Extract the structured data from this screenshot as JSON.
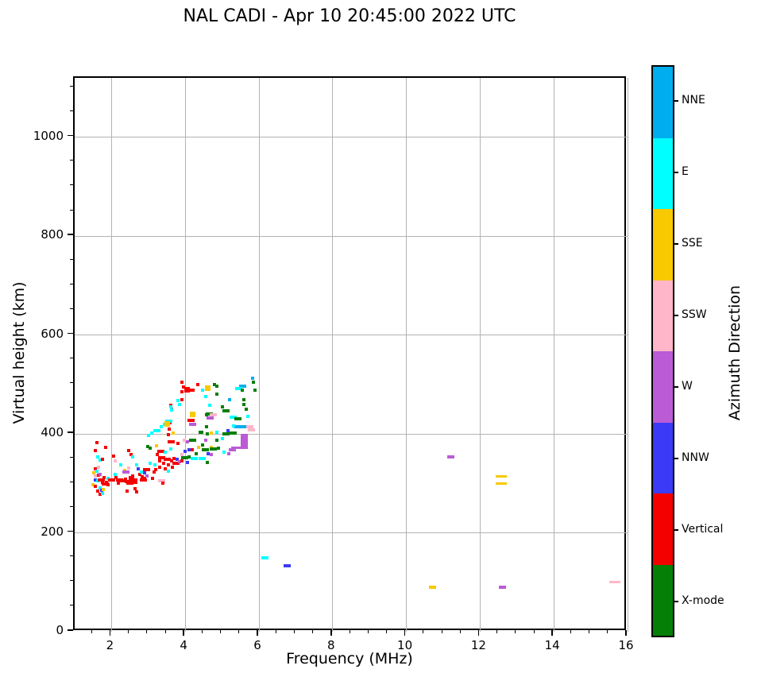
{
  "title": "NAL CADI - Apr 10 20:45:00 2022 UTC",
  "chart_data": {
    "type": "scatter",
    "title": "NAL CADI - Apr 10 20:45:00 2022 UTC",
    "xlabel": "Frequency (MHz)",
    "ylabel": "Virtual height (km)",
    "xlim": [
      1,
      16
    ],
    "ylim": [
      0,
      1120
    ],
    "x_major_ticks": [
      2,
      4,
      6,
      8,
      10,
      12,
      14,
      16
    ],
    "y_major_ticks": [
      0,
      200,
      400,
      600,
      800,
      1000
    ],
    "x_minor_step": 0.5,
    "y_minor_step": 50,
    "grid": true,
    "grid_color": "#b3b3b3",
    "background_color": "#ffffff",
    "colorbar": {
      "label": "Azimuth Direction",
      "position": "right",
      "categories_top_to_bottom": [
        {
          "label": "NNE",
          "color": "#00ADEF"
        },
        {
          "label": "E",
          "color": "#00FFFF"
        },
        {
          "label": "SSE",
          "color": "#F8C800"
        },
        {
          "label": "SSW",
          "color": "#FFB6C9"
        },
        {
          "label": "W",
          "color": "#BB5BD6"
        },
        {
          "label": "NNW",
          "color": "#3B3BF7"
        },
        {
          "label": "Vertical",
          "color": "#F50000"
        },
        {
          "label": "X-mode",
          "color": "#067F06"
        }
      ]
    },
    "marker_size_classes": {
      "1": {
        "w": 4,
        "h": 4
      },
      "2": {
        "w": 9,
        "h": 4
      },
      "3": {
        "w": 7,
        "h": 7
      },
      "4": {
        "w": 9,
        "h": 19
      },
      "5": {
        "w": 14,
        "h": 3
      }
    },
    "points_format": [
      "freq_mhz",
      "virtual_height_km",
      "azimuth_category",
      "size_class"
    ],
    "points": [
      [
        1.61,
        382,
        "Vertical",
        1
      ],
      [
        1.83,
        373,
        "Vertical",
        1
      ],
      [
        1.57,
        366,
        "Vertical",
        1
      ],
      [
        1.55,
        330,
        "Vertical",
        1
      ],
      [
        1.63,
        353,
        "E",
        1
      ],
      [
        1.7,
        347,
        "E",
        1
      ],
      [
        1.76,
        349,
        "Vertical",
        1
      ],
      [
        1.65,
        333,
        "SSW",
        1
      ],
      [
        1.61,
        325,
        "E",
        1
      ],
      [
        1.52,
        321,
        "SSE",
        1
      ],
      [
        1.57,
        315,
        "SSW",
        1
      ],
      [
        1.65,
        316,
        "Vertical",
        1
      ],
      [
        1.7,
        318,
        "W",
        1
      ],
      [
        1.55,
        307,
        "NNW",
        1
      ],
      [
        1.63,
        305,
        "E",
        1
      ],
      [
        1.72,
        307,
        "Vertical",
        2
      ],
      [
        1.76,
        302,
        "Vertical",
        1
      ],
      [
        1.5,
        297,
        "SSE",
        1
      ],
      [
        1.57,
        294,
        "Vertical",
        1
      ],
      [
        1.68,
        291,
        "E",
        1
      ],
      [
        1.74,
        286,
        "NNW",
        1
      ],
      [
        1.63,
        284,
        "Vertical",
        1
      ],
      [
        1.68,
        278,
        "Vertical",
        1
      ],
      [
        1.76,
        280,
        "E",
        1
      ],
      [
        1.78,
        288,
        "SSE",
        1
      ],
      [
        1.8,
        312,
        "Vertical",
        1
      ],
      [
        1.83,
        299,
        "Vertical",
        2
      ],
      [
        1.87,
        302,
        "Vertical",
        1
      ],
      [
        1.91,
        297,
        "Vertical",
        1
      ],
      [
        1.9,
        310,
        "E",
        1
      ],
      [
        2.0,
        307,
        "Vertical",
        2
      ],
      [
        2.05,
        355,
        "Vertical",
        1
      ],
      [
        2.1,
        345,
        "SSW",
        1
      ],
      [
        2.09,
        318,
        "E",
        1
      ],
      [
        2.13,
        311,
        "Vertical",
        1
      ],
      [
        2.19,
        300,
        "Vertical",
        1
      ],
      [
        2.22,
        307,
        "Vertical",
        2
      ],
      [
        2.25,
        338,
        "E",
        1
      ],
      [
        2.3,
        305,
        "Vertical",
        2
      ],
      [
        2.35,
        327,
        "SSE",
        1
      ],
      [
        2.37,
        308,
        "Vertical",
        1
      ],
      [
        2.4,
        323,
        "W",
        2
      ],
      [
        2.43,
        284,
        "Vertical",
        1
      ],
      [
        2.45,
        303,
        "Vertical",
        2
      ],
      [
        2.47,
        331,
        "SSW",
        1
      ],
      [
        2.47,
        366,
        "Vertical",
        1
      ],
      [
        2.5,
        300,
        "Vertical",
        2
      ],
      [
        2.52,
        358,
        "Vertical",
        1
      ],
      [
        2.55,
        310,
        "Vertical",
        3
      ],
      [
        2.58,
        353,
        "E",
        1
      ],
      [
        2.58,
        315,
        "Vertical",
        1
      ],
      [
        2.63,
        305,
        "Vertical",
        3
      ],
      [
        2.63,
        289,
        "Vertical",
        1
      ],
      [
        2.65,
        305,
        "Vertical",
        1
      ],
      [
        2.69,
        337,
        "E",
        1
      ],
      [
        2.69,
        283,
        "Vertical",
        1
      ],
      [
        2.73,
        329,
        "NNW",
        1
      ],
      [
        2.76,
        318,
        "Vertical",
        1
      ],
      [
        2.8,
        323,
        "E",
        1
      ],
      [
        2.84,
        313,
        "Vertical",
        1
      ],
      [
        2.86,
        307,
        "Vertical",
        2
      ],
      [
        2.9,
        310,
        "Vertical",
        1
      ],
      [
        2.99,
        374,
        "X-mode",
        1
      ],
      [
        2.9,
        321,
        "NNW",
        1
      ],
      [
        2.95,
        328,
        "Vertical",
        2
      ],
      [
        2.97,
        315,
        "W",
        1
      ],
      [
        3.05,
        371,
        "X-mode",
        1
      ],
      [
        3.05,
        340,
        "E",
        1
      ],
      [
        3.12,
        310,
        "Vertical",
        1
      ],
      [
        3.16,
        323,
        "Vertical",
        1
      ],
      [
        3.18,
        337,
        "E",
        1
      ],
      [
        3.2,
        328,
        "Vertical",
        1
      ],
      [
        3.23,
        376,
        "SSE",
        1
      ],
      [
        3.25,
        358,
        "Vertical",
        1
      ],
      [
        3.3,
        345,
        "Vertical",
        1
      ],
      [
        3.3,
        333,
        "Vertical",
        1
      ],
      [
        3.34,
        365,
        "Vertical",
        2
      ],
      [
        3.35,
        352,
        "Vertical",
        2
      ],
      [
        3.35,
        305,
        "SSW",
        2
      ],
      [
        3.4,
        300,
        "Vertical",
        1
      ],
      [
        3.42,
        340,
        "Vertical",
        1
      ],
      [
        3.45,
        363,
        "E",
        1
      ],
      [
        3.45,
        330,
        "Vertical",
        1
      ],
      [
        3.5,
        348,
        "Vertical",
        2
      ],
      [
        3.55,
        338,
        "Vertical",
        1
      ],
      [
        3.55,
        325,
        "E",
        1
      ],
      [
        3.6,
        370,
        "E",
        1
      ],
      [
        3.62,
        384,
        "Vertical",
        2
      ],
      [
        3.62,
        345,
        "Vertical",
        1
      ],
      [
        3.65,
        332,
        "Vertical",
        1
      ],
      [
        3.68,
        401,
        "SSE",
        1
      ],
      [
        3.7,
        350,
        "Vertical",
        1
      ],
      [
        3.75,
        340,
        "Vertical",
        2
      ],
      [
        3.77,
        349,
        "NNW",
        1
      ],
      [
        3.81,
        381,
        "Vertical",
        1
      ],
      [
        3.84,
        344,
        "W",
        1
      ],
      [
        3.92,
        358,
        "SSW",
        1
      ],
      [
        3.9,
        345,
        "Vertical",
        1
      ],
      [
        3.98,
        387,
        "SSW",
        1
      ],
      [
        3.98,
        352,
        "X-mode",
        2
      ],
      [
        4.0,
        365,
        "NNW",
        1
      ],
      [
        4.05,
        384,
        "W",
        1
      ],
      [
        4.05,
        342,
        "NNW",
        1
      ],
      [
        4.1,
        368,
        "NNW",
        1
      ],
      [
        4.1,
        354,
        "X-mode",
        1
      ],
      [
        4.15,
        428,
        "Vertical",
        2
      ],
      [
        4.2,
        387,
        "X-mode",
        2
      ],
      [
        4.2,
        368,
        "Vertical",
        1
      ],
      [
        4.2,
        420,
        "W",
        2
      ],
      [
        4.25,
        350,
        "E",
        2
      ],
      [
        4.3,
        360,
        "X-mode",
        1
      ],
      [
        4.37,
        373,
        "SSE",
        1
      ],
      [
        4.4,
        403,
        "X-mode",
        1
      ],
      [
        4.45,
        350,
        "E",
        2
      ],
      [
        4.46,
        378,
        "X-mode",
        1
      ],
      [
        4.56,
        387,
        "W",
        1
      ],
      [
        4.7,
        401,
        "SSE",
        1
      ],
      [
        3.92,
        505,
        "Vertical",
        1
      ],
      [
        3.95,
        495,
        "Vertical",
        1
      ],
      [
        3.92,
        485,
        "Vertical",
        1
      ],
      [
        4.05,
        490,
        "Vertical",
        3
      ],
      [
        4.15,
        488,
        "Vertical",
        2
      ],
      [
        3.9,
        470,
        "Vertical",
        1
      ],
      [
        4.35,
        500,
        "Vertical",
        1
      ],
      [
        3.6,
        458,
        "Vertical",
        1
      ],
      [
        3.62,
        450,
        "Vertical",
        1
      ],
      [
        3.58,
        423,
        "Vertical",
        1
      ],
      [
        3.56,
        410,
        "Vertical",
        1
      ],
      [
        3.55,
        399,
        "Vertical",
        1
      ],
      [
        3.8,
        468,
        "E",
        1
      ],
      [
        3.84,
        460,
        "E",
        1
      ],
      [
        3.6,
        455,
        "E",
        1
      ],
      [
        3.63,
        448,
        "E",
        1
      ],
      [
        3.55,
        426,
        "E",
        2
      ],
      [
        3.44,
        420,
        "E",
        1
      ],
      [
        3.34,
        415,
        "E",
        1
      ],
      [
        3.23,
        407,
        "E",
        2
      ],
      [
        3.1,
        402,
        "E",
        1
      ],
      [
        3.0,
        397,
        "E",
        1
      ],
      [
        4.46,
        489,
        "E",
        1
      ],
      [
        3.52,
        420,
        "SSE",
        3
      ],
      [
        4.2,
        440,
        "SSE",
        3
      ],
      [
        4.6,
        492,
        "SSE",
        3
      ],
      [
        4.8,
        500,
        "X-mode",
        1
      ],
      [
        4.85,
        497,
        "X-mode",
        1
      ],
      [
        4.85,
        480,
        "X-mode",
        1
      ],
      [
        4.57,
        438,
        "X-mode",
        1
      ],
      [
        4.65,
        440,
        "X-mode",
        2
      ],
      [
        4.57,
        414,
        "X-mode",
        1
      ],
      [
        4.6,
        400,
        "X-mode",
        1
      ],
      [
        4.45,
        403,
        "X-mode",
        1
      ],
      [
        4.55,
        476,
        "E",
        1
      ],
      [
        4.66,
        458,
        "E",
        1
      ],
      [
        4.75,
        438,
        "SSW",
        2
      ],
      [
        4.68,
        432,
        "W",
        2
      ],
      [
        5.1,
        447,
        "X-mode",
        2
      ],
      [
        5.3,
        434,
        "E",
        2
      ],
      [
        5.42,
        430,
        "X-mode",
        2
      ],
      [
        5.55,
        497,
        "NNE",
        2
      ],
      [
        5.45,
        492,
        "E",
        2
      ],
      [
        5.55,
        488,
        "X-mode",
        1
      ],
      [
        5.6,
        470,
        "X-mode",
        1
      ],
      [
        5.6,
        460,
        "X-mode",
        1
      ],
      [
        5.75,
        415,
        "SSW",
        2
      ],
      [
        5.4,
        415,
        "NNE",
        2
      ],
      [
        5.55,
        414,
        "NNE",
        2
      ],
      [
        5.3,
        416,
        "E",
        1
      ],
      [
        5.15,
        407,
        "NNW",
        1
      ],
      [
        5.1,
        400,
        "X-mode",
        2
      ],
      [
        5.3,
        402,
        "X-mode",
        2
      ],
      [
        4.85,
        403,
        "E",
        1
      ],
      [
        4.85,
        387,
        "X-mode",
        1
      ],
      [
        4.9,
        371,
        "X-mode",
        1
      ],
      [
        5.0,
        390,
        "E",
        1
      ],
      [
        5.05,
        363,
        "E",
        1
      ],
      [
        5.6,
        385,
        "W",
        4
      ],
      [
        5.4,
        372,
        "W",
        5
      ],
      [
        5.28,
        368,
        "W",
        2
      ],
      [
        5.18,
        360,
        "W",
        1
      ],
      [
        4.7,
        358,
        "W",
        1
      ],
      [
        4.62,
        360,
        "NNW",
        1
      ],
      [
        4.7,
        373,
        "SSE",
        1
      ],
      [
        5.85,
        505,
        "X-mode",
        1
      ],
      [
        5.9,
        488,
        "X-mode",
        1
      ],
      [
        5.82,
        512,
        "NNE",
        1
      ],
      [
        5.8,
        408,
        "SSW",
        2
      ],
      [
        4.55,
        368,
        "X-mode",
        2
      ],
      [
        4.75,
        370,
        "X-mode",
        2
      ],
      [
        4.6,
        342,
        "X-mode",
        1
      ],
      [
        5.0,
        455,
        "X-mode",
        1
      ],
      [
        5.2,
        470,
        "NNE",
        1
      ],
      [
        5.65,
        450,
        "X-mode",
        1
      ],
      [
        5.7,
        435,
        "E",
        1
      ],
      [
        6.17,
        150,
        "E",
        2
      ],
      [
        6.77,
        133,
        "NNW",
        2
      ],
      [
        10.7,
        90,
        "SSE",
        2
      ],
      [
        12.6,
        90,
        "W",
        2
      ],
      [
        11.2,
        353,
        "W",
        2
      ],
      [
        12.58,
        314,
        "SSE",
        5
      ],
      [
        12.58,
        300,
        "SSE",
        5
      ],
      [
        15.65,
        100,
        "SSW",
        5
      ]
    ]
  }
}
